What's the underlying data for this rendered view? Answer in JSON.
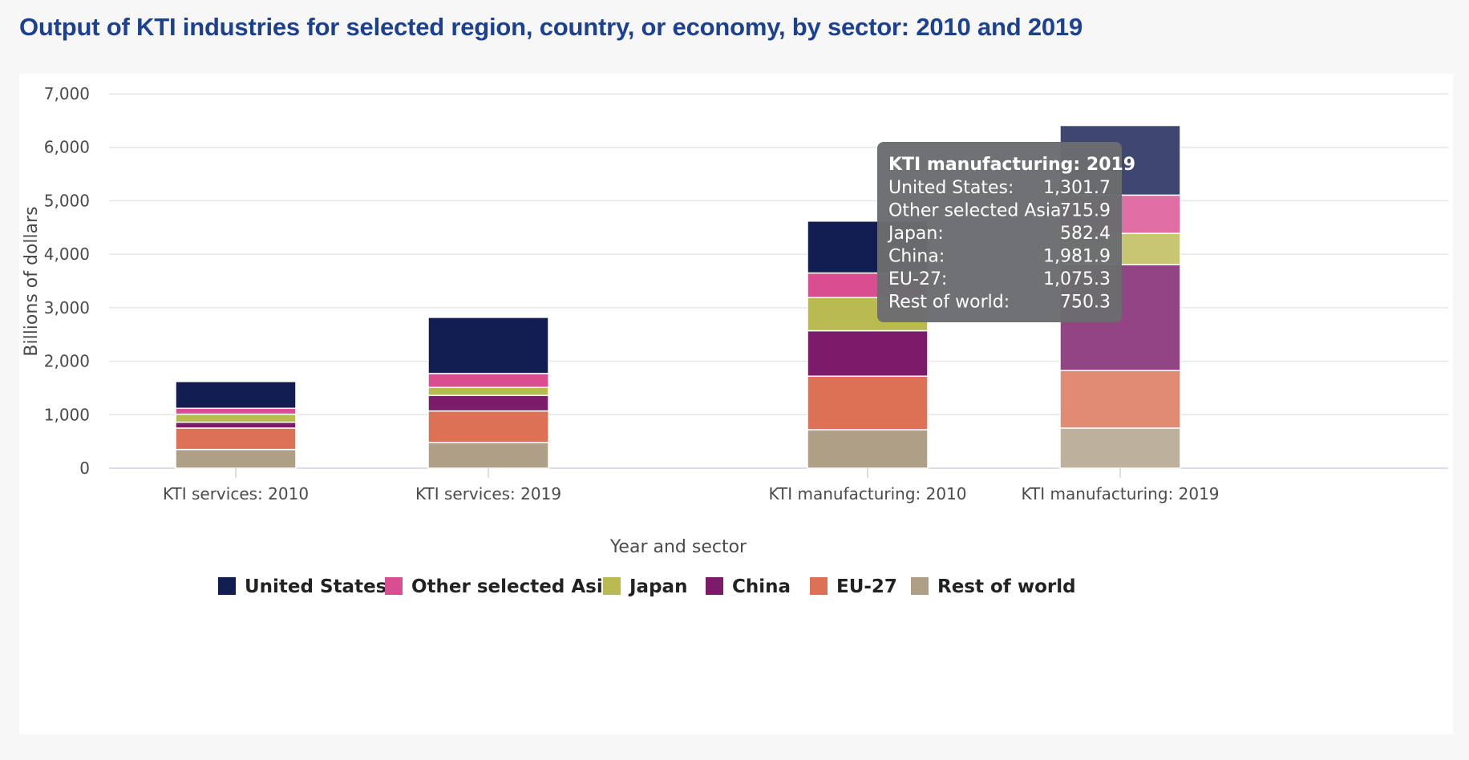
{
  "title": "Output of KTI industries for selected region, country, or economy, by sector: 2010 and 2019",
  "chart_data": {
    "type": "bar",
    "stacked": true,
    "categories": [
      "KTI services: 2010",
      "KTI services: 2019",
      "KTI manufacturing: 2010",
      "KTI manufacturing: 2019"
    ],
    "xlabel": "Year and sector",
    "ylabel": "Billions of dollars",
    "ylim": [
      0,
      7000
    ],
    "yticks": [
      0,
      1000,
      2000,
      3000,
      4000,
      5000,
      6000,
      7000
    ],
    "ytick_labels": [
      "0",
      "1,000",
      "2,000",
      "3,000",
      "4,000",
      "5,000",
      "6,000",
      "7,000"
    ],
    "grid": true,
    "legend_position": "bottom",
    "series": [
      {
        "name": "Rest of world",
        "color": "#ae9f86",
        "values": [
          350,
          480,
          720,
          750.3
        ]
      },
      {
        "name": "EU-27",
        "color": "#dc7156",
        "values": [
          400,
          590,
          1000,
          1075.3
        ]
      },
      {
        "name": "China",
        "color": "#7b1b6a",
        "values": [
          110,
          290,
          850,
          1981.9
        ]
      },
      {
        "name": "Japan",
        "color": "#b9bb51",
        "values": [
          150,
          150,
          620,
          582.4
        ]
      },
      {
        "name": "Other selected Asia",
        "color": "#db4d91",
        "values": [
          110,
          260,
          460,
          715.9
        ]
      },
      {
        "name": "United States",
        "color": "#121e52",
        "values": [
          500,
          1050,
          970,
          1301.7
        ]
      }
    ],
    "legend_order": [
      "United States",
      "Other selected Asia",
      "Japan",
      "China",
      "EU-27",
      "Rest of world"
    ],
    "tooltip": {
      "category": "KTI manufacturing: 2019",
      "title": "KTI manufacturing: 2019",
      "rows": [
        {
          "label": "United States:",
          "value": "1,301.7"
        },
        {
          "label": "Other selected Asia:",
          "value": "715.9"
        },
        {
          "label": "Japan:",
          "value": "582.4"
        },
        {
          "label": "China:",
          "value": "1,981.9"
        },
        {
          "label": "EU-27:",
          "value": "1,075.3"
        },
        {
          "label": "Rest of world:",
          "value": "750.3"
        }
      ]
    }
  }
}
